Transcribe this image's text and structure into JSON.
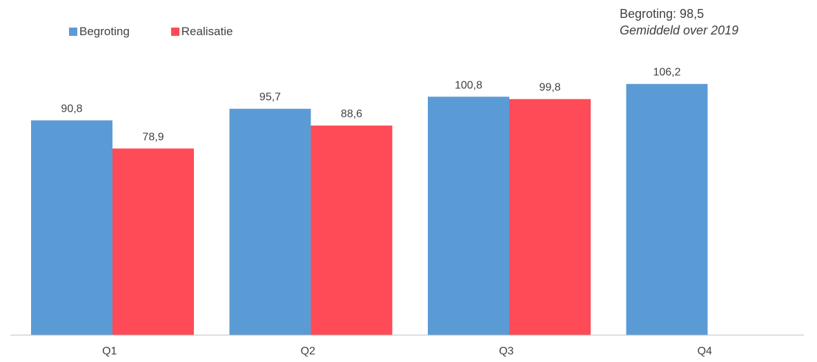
{
  "chart_data": {
    "type": "bar",
    "categories": [
      "Q1",
      "Q2",
      "Q3",
      "Q4"
    ],
    "series": [
      {
        "name": "Begroting",
        "color": "#5B9BD5",
        "values": [
          90.8,
          95.7,
          100.8,
          106.2
        ]
      },
      {
        "name": "Realisatie",
        "color": "#FF4B57",
        "values": [
          78.9,
          88.6,
          99.8,
          null
        ]
      }
    ],
    "data_labels": [
      [
        "90,8",
        "95,7",
        "100,8",
        "106,2"
      ],
      [
        "78,9",
        "88,6",
        "99,8",
        null
      ]
    ],
    "annotation": {
      "line1": "Begroting: 98,5",
      "line2": "Gemiddeld over 2019"
    },
    "legend_position": "top-left",
    "grid": false,
    "ylim": [
      0,
      150
    ]
  }
}
